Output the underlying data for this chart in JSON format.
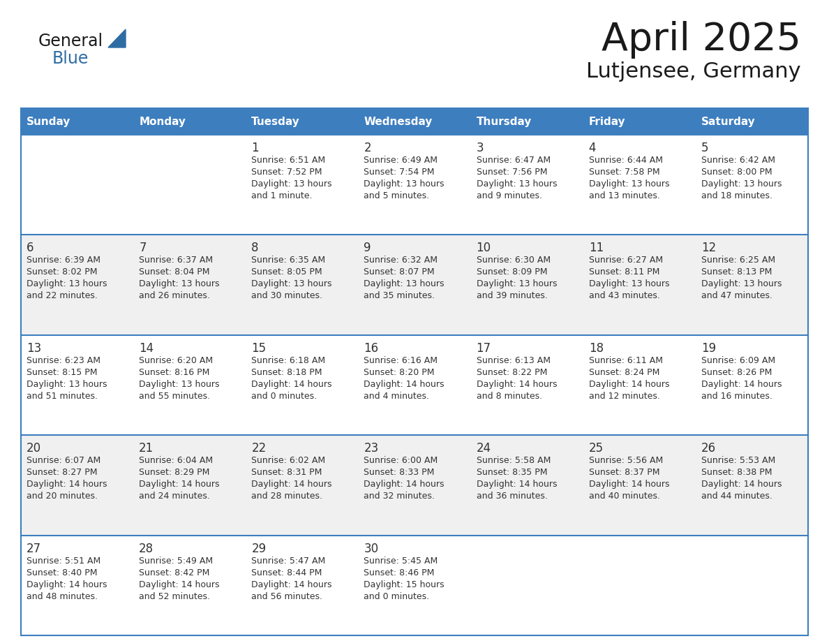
{
  "title": "April 2025",
  "subtitle": "Lutjensee, Germany",
  "header_bg_color": "#3d7ebf",
  "header_text_color": "#ffffff",
  "cell_bg_color_even": "#f0f0f0",
  "cell_bg_color_odd": "#ffffff",
  "border_color": "#3d7ebf",
  "text_color": "#333333",
  "days_of_week": [
    "Sunday",
    "Monday",
    "Tuesday",
    "Wednesday",
    "Thursday",
    "Friday",
    "Saturday"
  ],
  "weeks": [
    [
      {
        "day": "",
        "info": ""
      },
      {
        "day": "",
        "info": ""
      },
      {
        "day": "1",
        "info": "Sunrise: 6:51 AM\nSunset: 7:52 PM\nDaylight: 13 hours\nand 1 minute."
      },
      {
        "day": "2",
        "info": "Sunrise: 6:49 AM\nSunset: 7:54 PM\nDaylight: 13 hours\nand 5 minutes."
      },
      {
        "day": "3",
        "info": "Sunrise: 6:47 AM\nSunset: 7:56 PM\nDaylight: 13 hours\nand 9 minutes."
      },
      {
        "day": "4",
        "info": "Sunrise: 6:44 AM\nSunset: 7:58 PM\nDaylight: 13 hours\nand 13 minutes."
      },
      {
        "day": "5",
        "info": "Sunrise: 6:42 AM\nSunset: 8:00 PM\nDaylight: 13 hours\nand 18 minutes."
      }
    ],
    [
      {
        "day": "6",
        "info": "Sunrise: 6:39 AM\nSunset: 8:02 PM\nDaylight: 13 hours\nand 22 minutes."
      },
      {
        "day": "7",
        "info": "Sunrise: 6:37 AM\nSunset: 8:04 PM\nDaylight: 13 hours\nand 26 minutes."
      },
      {
        "day": "8",
        "info": "Sunrise: 6:35 AM\nSunset: 8:05 PM\nDaylight: 13 hours\nand 30 minutes."
      },
      {
        "day": "9",
        "info": "Sunrise: 6:32 AM\nSunset: 8:07 PM\nDaylight: 13 hours\nand 35 minutes."
      },
      {
        "day": "10",
        "info": "Sunrise: 6:30 AM\nSunset: 8:09 PM\nDaylight: 13 hours\nand 39 minutes."
      },
      {
        "day": "11",
        "info": "Sunrise: 6:27 AM\nSunset: 8:11 PM\nDaylight: 13 hours\nand 43 minutes."
      },
      {
        "day": "12",
        "info": "Sunrise: 6:25 AM\nSunset: 8:13 PM\nDaylight: 13 hours\nand 47 minutes."
      }
    ],
    [
      {
        "day": "13",
        "info": "Sunrise: 6:23 AM\nSunset: 8:15 PM\nDaylight: 13 hours\nand 51 minutes."
      },
      {
        "day": "14",
        "info": "Sunrise: 6:20 AM\nSunset: 8:16 PM\nDaylight: 13 hours\nand 55 minutes."
      },
      {
        "day": "15",
        "info": "Sunrise: 6:18 AM\nSunset: 8:18 PM\nDaylight: 14 hours\nand 0 minutes."
      },
      {
        "day": "16",
        "info": "Sunrise: 6:16 AM\nSunset: 8:20 PM\nDaylight: 14 hours\nand 4 minutes."
      },
      {
        "day": "17",
        "info": "Sunrise: 6:13 AM\nSunset: 8:22 PM\nDaylight: 14 hours\nand 8 minutes."
      },
      {
        "day": "18",
        "info": "Sunrise: 6:11 AM\nSunset: 8:24 PM\nDaylight: 14 hours\nand 12 minutes."
      },
      {
        "day": "19",
        "info": "Sunrise: 6:09 AM\nSunset: 8:26 PM\nDaylight: 14 hours\nand 16 minutes."
      }
    ],
    [
      {
        "day": "20",
        "info": "Sunrise: 6:07 AM\nSunset: 8:27 PM\nDaylight: 14 hours\nand 20 minutes."
      },
      {
        "day": "21",
        "info": "Sunrise: 6:04 AM\nSunset: 8:29 PM\nDaylight: 14 hours\nand 24 minutes."
      },
      {
        "day": "22",
        "info": "Sunrise: 6:02 AM\nSunset: 8:31 PM\nDaylight: 14 hours\nand 28 minutes."
      },
      {
        "day": "23",
        "info": "Sunrise: 6:00 AM\nSunset: 8:33 PM\nDaylight: 14 hours\nand 32 minutes."
      },
      {
        "day": "24",
        "info": "Sunrise: 5:58 AM\nSunset: 8:35 PM\nDaylight: 14 hours\nand 36 minutes."
      },
      {
        "day": "25",
        "info": "Sunrise: 5:56 AM\nSunset: 8:37 PM\nDaylight: 14 hours\nand 40 minutes."
      },
      {
        "day": "26",
        "info": "Sunrise: 5:53 AM\nSunset: 8:38 PM\nDaylight: 14 hours\nand 44 minutes."
      }
    ],
    [
      {
        "day": "27",
        "info": "Sunrise: 5:51 AM\nSunset: 8:40 PM\nDaylight: 14 hours\nand 48 minutes."
      },
      {
        "day": "28",
        "info": "Sunrise: 5:49 AM\nSunset: 8:42 PM\nDaylight: 14 hours\nand 52 minutes."
      },
      {
        "day": "29",
        "info": "Sunrise: 5:47 AM\nSunset: 8:44 PM\nDaylight: 14 hours\nand 56 minutes."
      },
      {
        "day": "30",
        "info": "Sunrise: 5:45 AM\nSunset: 8:46 PM\nDaylight: 15 hours\nand 0 minutes."
      },
      {
        "day": "",
        "info": ""
      },
      {
        "day": "",
        "info": ""
      },
      {
        "day": "",
        "info": ""
      }
    ]
  ],
  "logo_text_general": "General",
  "logo_text_blue": "Blue",
  "logo_color_general": "#1a1a1a",
  "logo_color_blue": "#2e6da4",
  "logo_triangle_color": "#2e6da4",
  "figwidth": 11.88,
  "figheight": 9.18,
  "dpi": 100
}
